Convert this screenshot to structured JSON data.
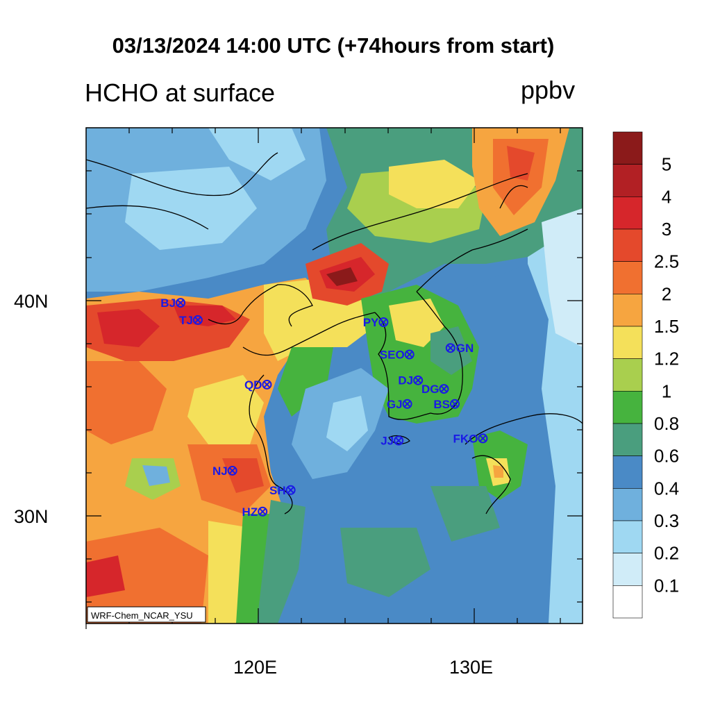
{
  "header": {
    "title": "03/13/2024 14:00 UTC (+74hours from start)",
    "left_subtitle": "HCHO at surface",
    "units": "ppbv"
  },
  "map": {
    "lat_labels": [
      "40N",
      "30N"
    ],
    "lon_labels": [
      "120E",
      "130E"
    ],
    "credit": "WRF-Chem_NCAR_YSU",
    "cities": [
      {
        "label": "BJ",
        "lon": 116.4,
        "lat": 39.9
      },
      {
        "label": "TJ",
        "lon": 117.2,
        "lat": 39.1
      },
      {
        "label": "PY",
        "lon": 125.8,
        "lat": 39.0
      },
      {
        "label": "SEO",
        "lon": 127.0,
        "lat": 37.5
      },
      {
        "label": "GN",
        "lon": 128.9,
        "lat": 37.8
      },
      {
        "label": "QD",
        "lon": 120.4,
        "lat": 36.1
      },
      {
        "label": "DJ",
        "lon": 127.4,
        "lat": 36.3
      },
      {
        "label": "DG",
        "lon": 128.6,
        "lat": 35.9
      },
      {
        "label": "GJ",
        "lon": 126.9,
        "lat": 35.2
      },
      {
        "label": "BS",
        "lon": 129.1,
        "lat": 35.2
      },
      {
        "label": "JJ",
        "lon": 126.5,
        "lat": 33.5
      },
      {
        "label": "FKO",
        "lon": 130.4,
        "lat": 33.6
      },
      {
        "label": "NJ",
        "lon": 118.8,
        "lat": 32.1
      },
      {
        "label": "SH",
        "lon": 121.5,
        "lat": 31.2
      },
      {
        "label": "HZ",
        "lon": 120.2,
        "lat": 30.2
      }
    ]
  },
  "colorbar": {
    "labels": [
      "5",
      "4",
      "3",
      "2.5",
      "2",
      "1.5",
      "1.2",
      "1",
      "0.8",
      "0.6",
      "0.4",
      "0.3",
      "0.2",
      "0.1"
    ],
    "colors": [
      "#8b1a1a",
      "#b22024",
      "#d6262b",
      "#e4492c",
      "#f07030",
      "#f6a540",
      "#f4e05a",
      "#a9cf4e",
      "#46b33e",
      "#4a9e7e",
      "#4a8ac6",
      "#6fb0dd",
      "#9fd8f2",
      "#d0ecf8",
      "#ffffff"
    ]
  }
}
